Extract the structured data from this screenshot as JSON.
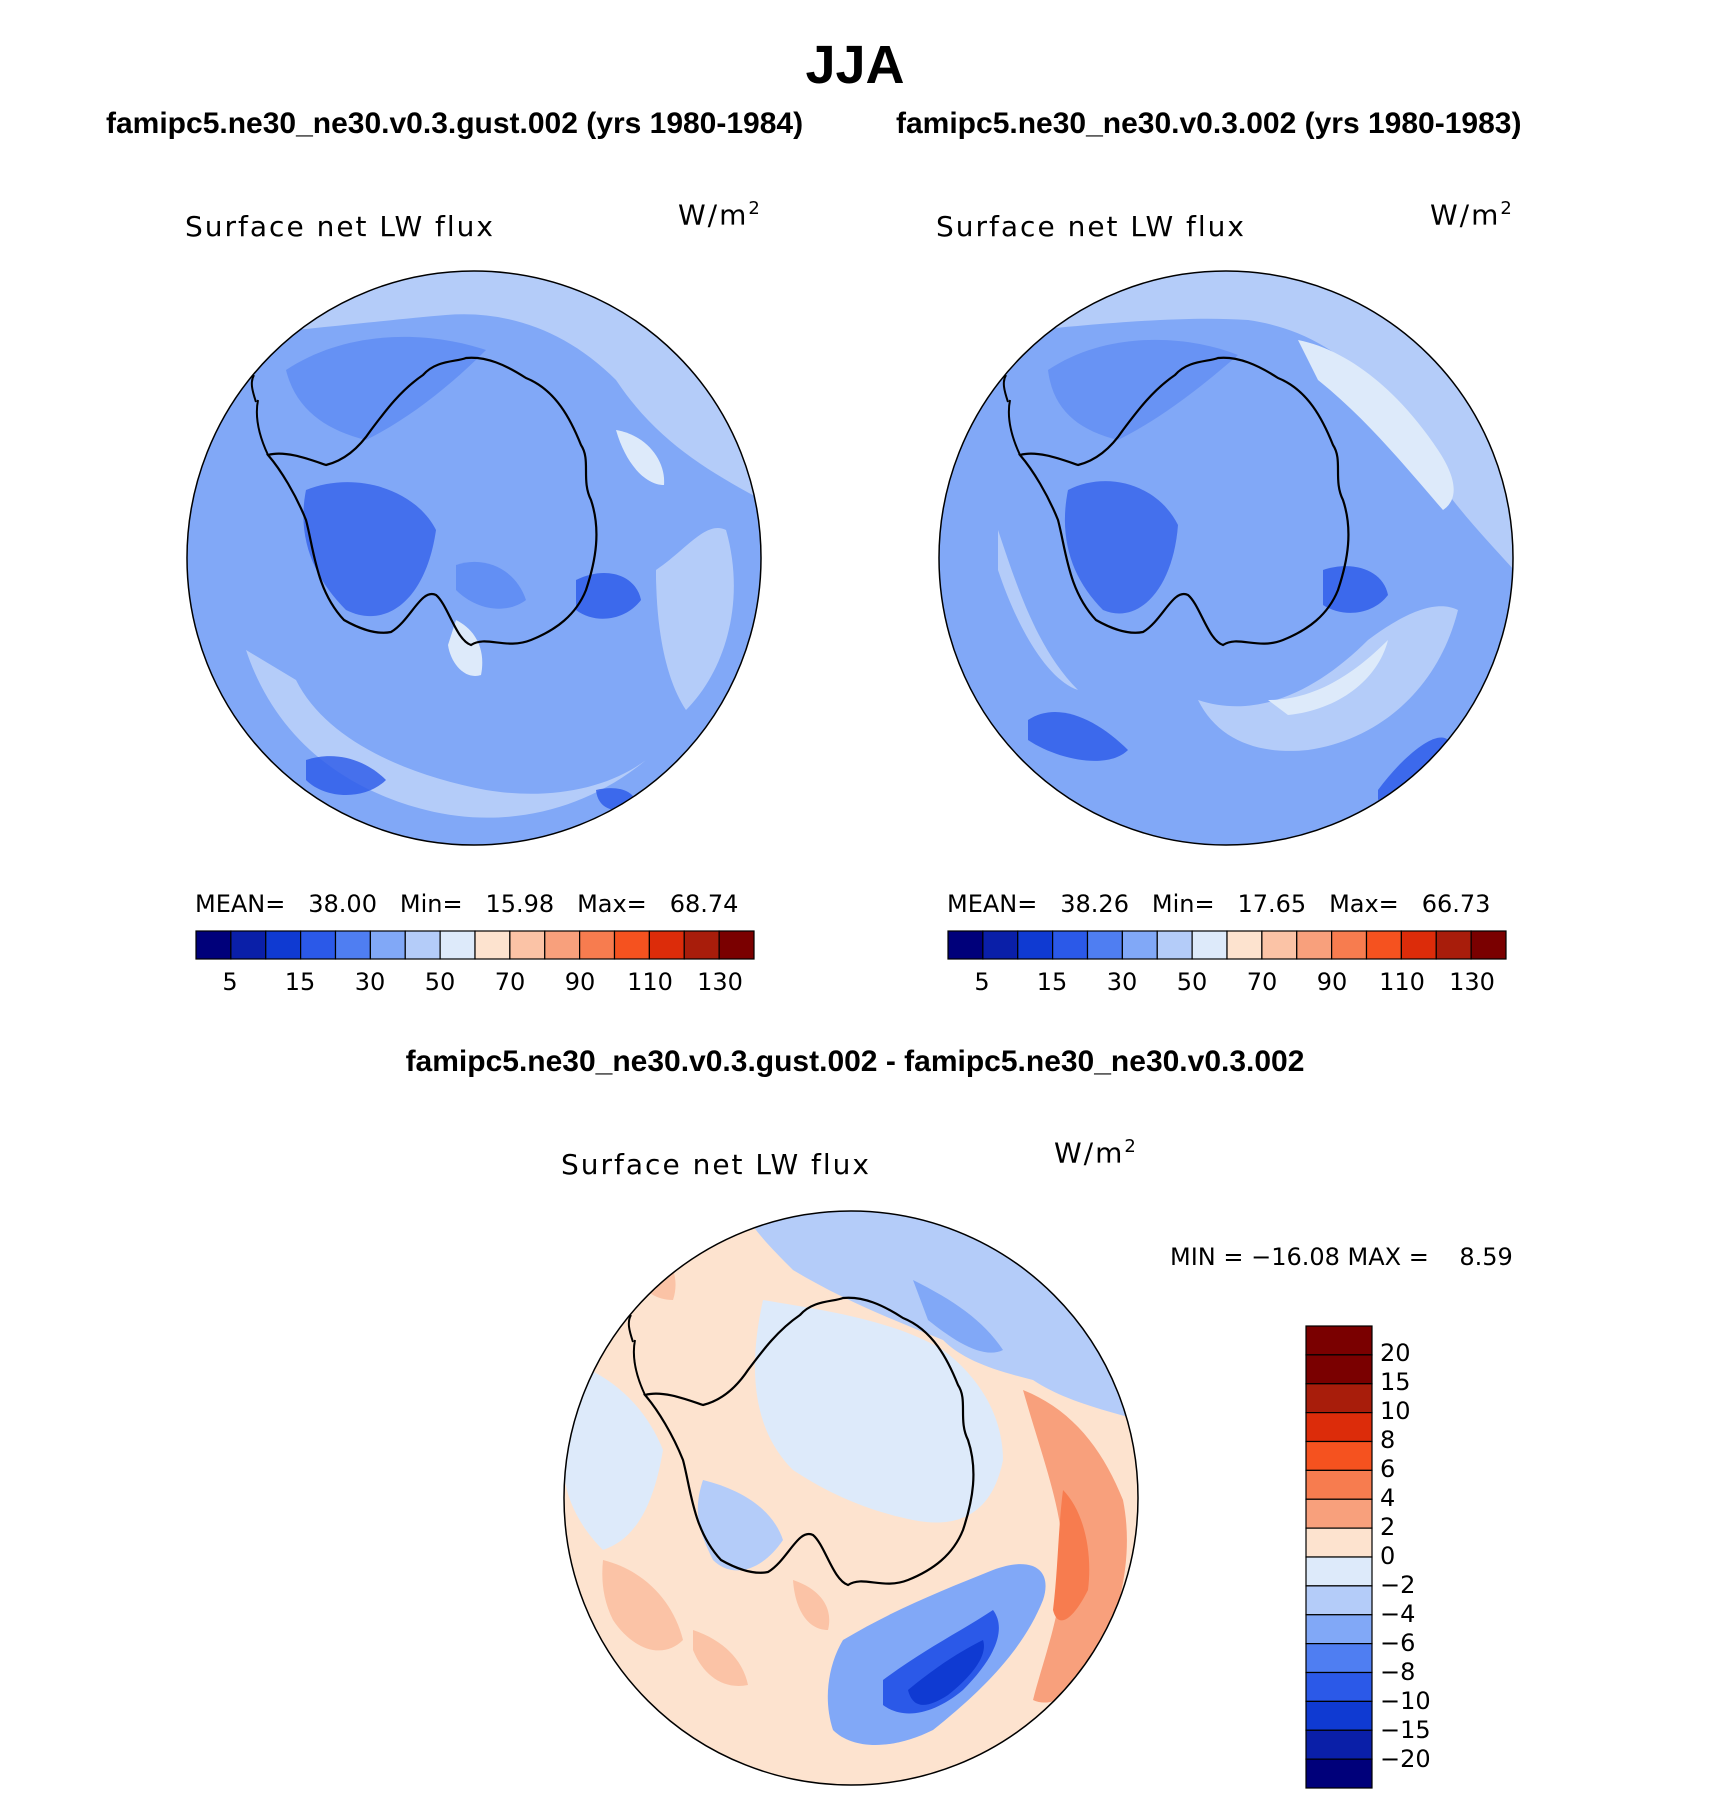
{
  "title": "JJA",
  "panels": [
    {
      "case_title": "famipc5.ne30_ne30.v0.3.gust.002 (yrs 1980-1984)",
      "field_label": "Surface net LW flux",
      "units_base": "W/m",
      "units_exp": "2",
      "stats": {
        "mean_label": "MEAN=",
        "mean": "38.00",
        "min_label": "Min=",
        "min": "15.98",
        "max_label": "Max=",
        "max": "68.74"
      },
      "colorbar_ticks": [
        "5",
        "15",
        "30",
        "50",
        "70",
        "90",
        "110",
        "130"
      ]
    },
    {
      "case_title": "famipc5.ne30_ne30.v0.3.002 (yrs 1980-1983)",
      "field_label": "Surface net LW flux",
      "units_base": "W/m",
      "units_exp": "2",
      "stats": {
        "mean_label": "MEAN=",
        "mean": "38.26",
        "min_label": "Min=",
        "min": "17.65",
        "max_label": "Max=",
        "max": "66.73"
      },
      "colorbar_ticks": [
        "5",
        "15",
        "30",
        "50",
        "70",
        "90",
        "110",
        "130"
      ]
    }
  ],
  "diff_panel": {
    "case_title": "famipc5.ne30_ne30.v0.3.gust.002 - famipc5.ne30_ne30.v0.3.002",
    "field_label": "Surface net LW flux",
    "units_base": "W/m",
    "units_exp": "2",
    "minmax": "MIN = −16.08 MAX =    8.59",
    "colorbar_ticks": [
      "20",
      "15",
      "10",
      "8",
      "6",
      "4",
      "2",
      "0",
      "−2",
      "−4",
      "−6",
      "−8",
      "−10",
      "−15",
      "−20"
    ]
  },
  "colors": {
    "abs_scale": [
      "#00007a",
      "#0a1fa8",
      "#0f3ad2",
      "#2b59e8",
      "#4f7ef2",
      "#81a8f7",
      "#b4ccf9",
      "#ddeafa",
      "#fde3cf",
      "#fbc3a6",
      "#f8a07c",
      "#f77c4f",
      "#f5521f",
      "#dc2c0a",
      "#a81d0b",
      "#7a0000"
    ],
    "diff_scale": [
      "#7a0000",
      "#a81d0b",
      "#dc2c0a",
      "#f5521f",
      "#f77c4f",
      "#f8a07c",
      "#fde3cf",
      "#ddeafa",
      "#b4ccf9",
      "#81a8f7",
      "#4f7ef2",
      "#2b59e8",
      "#0f3ad2",
      "#0a1fa8",
      "#00007a"
    ]
  }
}
